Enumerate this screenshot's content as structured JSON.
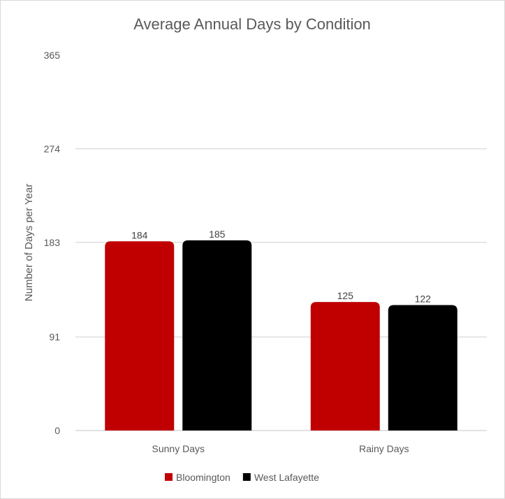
{
  "chart_data": {
    "type": "bar",
    "title": "Average Annual Days by Condition",
    "xlabel": "",
    "ylabel": "Number of Days per Year",
    "categories": [
      "Sunny Days",
      "Rainy Days"
    ],
    "series": [
      {
        "name": "Bloomington",
        "values": [
          184,
          125
        ],
        "color": "#c00000"
      },
      {
        "name": "West Lafayette",
        "values": [
          185,
          122
        ],
        "color": "#000000"
      }
    ],
    "yticks": [
      0,
      91,
      183,
      274,
      365
    ],
    "ylim": [
      0,
      365
    ],
    "grid": true,
    "legend": "bottom",
    "data_labels": true
  }
}
